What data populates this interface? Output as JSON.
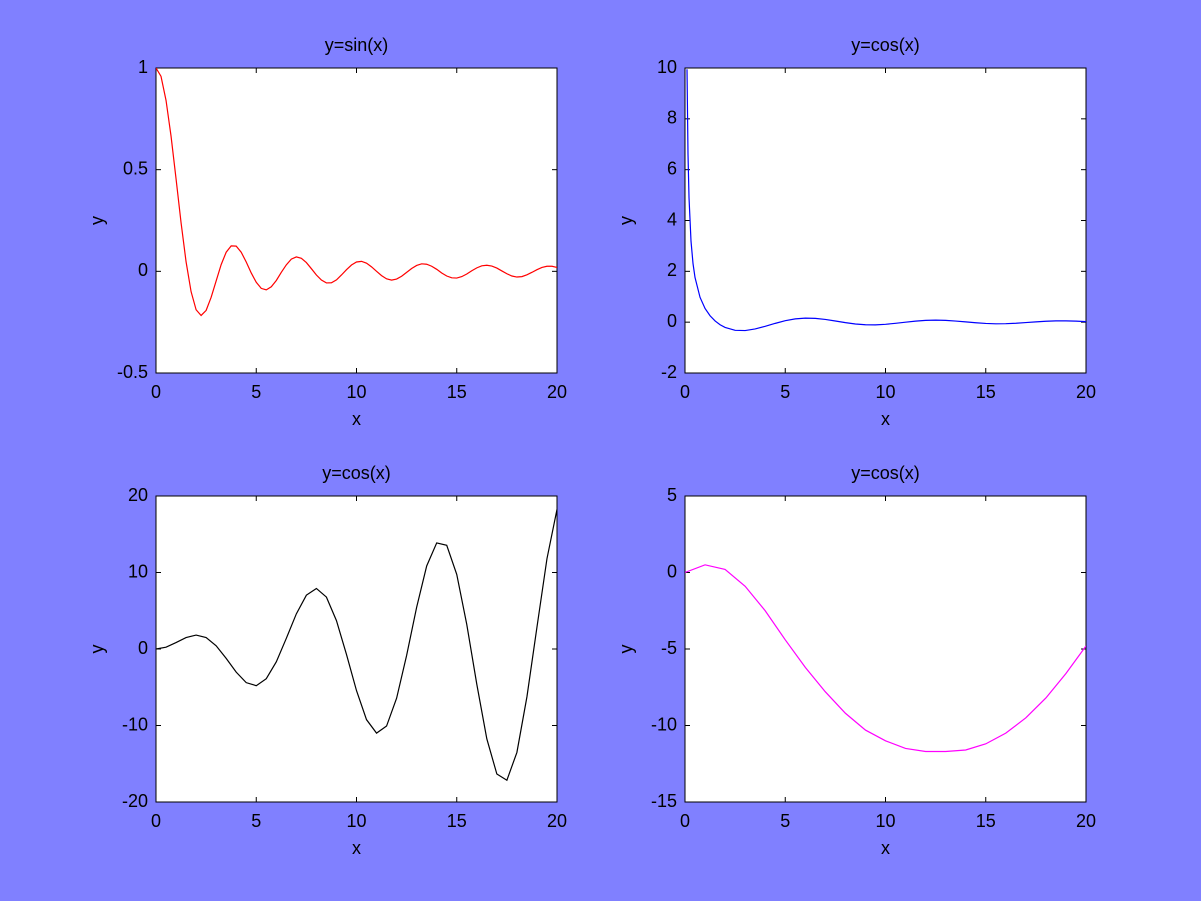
{
  "chart_data": [
    {
      "type": "line",
      "title": "y=sin(x)",
      "xlabel": "x",
      "ylabel": "y",
      "color": "#ff0000",
      "xlim": [
        0,
        20
      ],
      "xticks": [
        0,
        5,
        10,
        15,
        20
      ],
      "ylim": [
        -0.5,
        1
      ],
      "yticks": [
        -0.5,
        0,
        0.5,
        1
      ],
      "x": [
        0,
        0.25,
        0.5,
        0.75,
        1,
        1.25,
        1.5,
        1.75,
        2,
        2.25,
        2.5,
        2.75,
        3,
        3.25,
        3.5,
        3.75,
        4,
        4.25,
        4.5,
        4.75,
        5,
        5.25,
        5.5,
        5.75,
        6,
        6.25,
        6.5,
        6.75,
        7,
        7.25,
        7.5,
        7.75,
        8,
        8.25,
        8.5,
        8.75,
        9,
        9.25,
        9.5,
        9.75,
        10,
        10.25,
        10.5,
        10.75,
        11,
        11.25,
        11.5,
        11.75,
        12,
        12.25,
        12.5,
        12.75,
        13,
        13.25,
        13.5,
        13.75,
        14,
        14.25,
        14.5,
        14.75,
        15,
        15.25,
        15.5,
        15.75,
        16,
        16.25,
        16.5,
        16.75,
        17,
        17.25,
        17.5,
        17.75,
        18,
        18.25,
        18.5,
        18.75,
        19,
        19.25,
        19.5,
        19.75,
        20
      ],
      "values": [
        1,
        0.959,
        0.841,
        0.665,
        0.455,
        0.239,
        0.047,
        -0.1,
        -0.189,
        -0.217,
        -0.192,
        -0.128,
        -0.047,
        0.033,
        0.094,
        0.125,
        0.124,
        0.094,
        0.046,
        -0.008,
        -0.054,
        -0.084,
        -0.091,
        -0.076,
        -0.045,
        -0.005,
        0.032,
        0.06,
        0.071,
        0.064,
        0.043,
        0.013,
        -0.018,
        -0.043,
        -0.057,
        -0.056,
        -0.042,
        -0.018,
        0.008,
        0.031,
        0.046,
        0.049,
        0.04,
        0.022,
        0,
        -0.021,
        -0.037,
        -0.043,
        -0.038,
        -0.024,
        -0.005,
        0.014,
        0.029,
        0.037,
        0.035,
        0.025,
        0.01,
        -0.008,
        -0.023,
        -0.032,
        -0.033,
        -0.026,
        -0.013,
        0.003,
        0.017,
        0.027,
        0.03,
        0.026,
        0.016,
        0.002,
        -0.012,
        -0.023,
        -0.028,
        -0.026,
        -0.017,
        -0.005,
        0.008,
        0.019,
        0.025,
        0.025,
        0.019
      ]
    },
    {
      "type": "line",
      "title": "y=cos(x)",
      "xlabel": "x",
      "ylabel": "y",
      "color": "#0000ff",
      "xlim": [
        0,
        20
      ],
      "xticks": [
        0,
        5,
        10,
        15,
        20
      ],
      "ylim": [
        -2,
        10
      ],
      "yticks": [
        -2,
        0,
        2,
        4,
        6,
        8,
        10
      ],
      "x": [
        0.1,
        0.15,
        0.2,
        0.3,
        0.4,
        0.5,
        0.75,
        1,
        1.25,
        1.5,
        1.75,
        2,
        2.5,
        3,
        3.5,
        4,
        4.5,
        5,
        5.5,
        6,
        6.5,
        7,
        7.5,
        8,
        8.5,
        9,
        9.5,
        10,
        10.5,
        11,
        11.5,
        12,
        12.5,
        13,
        13.5,
        14,
        14.5,
        15,
        15.5,
        16,
        16.5,
        17,
        17.5,
        18,
        18.5,
        19,
        19.5,
        20
      ],
      "values": [
        9.95,
        6.592,
        4.9,
        3.184,
        2.303,
        1.755,
        0.976,
        0.54,
        0.252,
        0.047,
        -0.102,
        -0.208,
        -0.32,
        -0.33,
        -0.267,
        -0.163,
        -0.047,
        0.057,
        0.129,
        0.16,
        0.15,
        0.108,
        0.046,
        -0.018,
        -0.071,
        -0.101,
        -0.105,
        -0.084,
        -0.045,
        0,
        0.041,
        0.07,
        0.08,
        0.07,
        0.044,
        0.01,
        -0.024,
        -0.051,
        -0.064,
        -0.06,
        -0.043,
        -0.016,
        0.012,
        0.037,
        0.051,
        0.052,
        0.041,
        0.02
      ]
    },
    {
      "type": "line",
      "title": "y=cos(x)",
      "xlabel": "x",
      "ylabel": "y",
      "color": "#000000",
      "xlim": [
        0,
        20
      ],
      "xticks": [
        0,
        5,
        10,
        15,
        20
      ],
      "ylim": [
        -20,
        20
      ],
      "yticks": [
        -20,
        -10,
        0,
        10,
        20
      ],
      "x": [
        0,
        0.5,
        1,
        1.5,
        2,
        2.5,
        3,
        3.5,
        4,
        4.5,
        5,
        5.5,
        6,
        6.5,
        7,
        7.5,
        8,
        8.5,
        9,
        9.5,
        10,
        10.5,
        11,
        11.5,
        12,
        12.5,
        13,
        13.5,
        14,
        14.5,
        15,
        15.5,
        16,
        16.5,
        17,
        17.5,
        18,
        18.5,
        19,
        19.5,
        20
      ],
      "values": [
        0,
        0.24,
        0.841,
        1.496,
        1.819,
        1.496,
        0.423,
        -1.228,
        -3.027,
        -4.399,
        -4.795,
        -3.88,
        -1.676,
        1.398,
        4.599,
        7.035,
        7.915,
        6.787,
        3.709,
        -0.714,
        -5.44,
        -9.237,
        -11,
        -10.068,
        -6.439,
        -0.829,
        5.463,
        10.851,
        13.868,
        13.556,
        9.754,
        3.201,
        -4.606,
        -11.745,
        -16.344,
        -17.155,
        -13.518,
        -6.259,
        2.848,
        11.807,
        18.259
      ]
    },
    {
      "type": "line",
      "title": "y=cos(x)",
      "xlabel": "x",
      "ylabel": "y",
      "color": "#ff00ff",
      "xlim": [
        0,
        20
      ],
      "xticks": [
        0,
        5,
        10,
        15,
        20
      ],
      "ylim": [
        -15,
        5
      ],
      "yticks": [
        -15,
        -10,
        -5,
        0,
        5
      ],
      "x": [
        0,
        1,
        2,
        3,
        4,
        5,
        6,
        7,
        8,
        9,
        10,
        11,
        12,
        13,
        14,
        15,
        16,
        17,
        18,
        19,
        20
      ],
      "values": [
        0,
        0.5,
        0.2,
        -0.9,
        -2.5,
        -4.4,
        -6.2,
        -7.8,
        -9.2,
        -10.3,
        -11,
        -11.5,
        -11.7,
        -11.7,
        -11.6,
        -11.2,
        -10.5,
        -9.5,
        -8.2,
        -6.6,
        -4.8
      ]
    }
  ]
}
